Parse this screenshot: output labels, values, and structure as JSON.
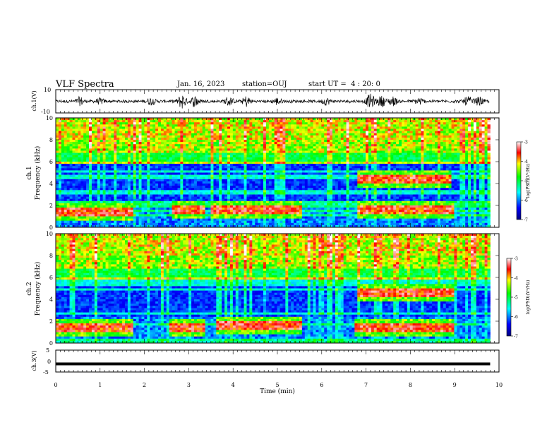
{
  "header": {
    "title": "VLF Spectra",
    "date": "Jan. 16, 2023",
    "station": "station=OUJ",
    "start_ut": "start UT =  4 : 20: 0"
  },
  "chart_data": [
    {
      "panel": "ch1-waveform",
      "type": "line",
      "ylabel": "ch.1(V)",
      "ylim": [
        -10,
        10
      ],
      "yticks": [
        "10",
        "-10"
      ],
      "xlim": [
        0,
        10
      ],
      "baseline_amplitude_v": 1.2,
      "bursts_min": [
        [
          0.55,
          3.0
        ],
        [
          1.0,
          2.0
        ],
        [
          2.15,
          2.5
        ],
        [
          2.85,
          5.5
        ],
        [
          3.15,
          4.5
        ],
        [
          3.9,
          3.5
        ],
        [
          4.3,
          4.0
        ],
        [
          5.0,
          2.5
        ],
        [
          6.1,
          2.5
        ],
        [
          7.1,
          5.5
        ],
        [
          7.35,
          4.0
        ],
        [
          7.6,
          3.5
        ],
        [
          8.2,
          2.5
        ],
        [
          9.3,
          3.5
        ],
        [
          9.55,
          3.0
        ]
      ]
    },
    {
      "panel": "ch1-spectrogram",
      "type": "heatmap",
      "ylabel_top": "ch.1",
      "ylabel": "Frequency (kHz)",
      "ylim": [
        0,
        10
      ],
      "yticks": [
        "0",
        "2",
        "4",
        "6",
        "8",
        "10"
      ],
      "xlim": [
        0,
        9.8
      ],
      "colorbar": {
        "label": "log(PSD)(V²/Hz)",
        "range": [
          -7,
          -3
        ],
        "ticks": [
          "-3",
          "-4",
          "-5",
          "-6",
          "-7"
        ]
      },
      "emission_bands": [
        {
          "t0": 0.0,
          "t1": 1.75,
          "f_center": 1.45
        },
        {
          "t0": 2.6,
          "t1": 3.35,
          "f_center": 1.5
        },
        {
          "t0": 3.5,
          "t1": 5.55,
          "f_center": 1.6
        },
        {
          "t0": 6.8,
          "t1": 9.0,
          "f_center": 1.55
        },
        {
          "t0": 6.8,
          "t1": 8.95,
          "f_center": 4.5
        }
      ]
    },
    {
      "panel": "ch2-spectrogram",
      "type": "heatmap",
      "ylabel_top": "ch.2",
      "ylabel": "Frequency (kHz)",
      "ylim": [
        0,
        10
      ],
      "yticks": [
        "0",
        "2",
        "4",
        "6",
        "8",
        "10"
      ],
      "xlim": [
        0,
        9.8
      ],
      "colorbar": {
        "label": "log(PSD)(V²/Hz)",
        "range": [
          -7,
          -3
        ],
        "ticks": [
          "-3",
          "-4",
          "-5",
          "-6",
          "-7"
        ]
      },
      "emission_bands": [
        {
          "t0": 0.0,
          "t1": 1.75,
          "f_center": 1.4
        },
        {
          "t0": 2.55,
          "t1": 3.35,
          "f_center": 1.45
        },
        {
          "t0": 3.6,
          "t1": 5.55,
          "f_center": 1.55
        },
        {
          "t0": 6.75,
          "t1": 9.0,
          "f_center": 1.45
        },
        {
          "t0": 6.8,
          "t1": 9.0,
          "f_center": 4.6
        }
      ]
    },
    {
      "panel": "ch3-waveform",
      "type": "line",
      "ylabel": "ch.3(V)",
      "ylim": [
        -5,
        5
      ],
      "yticks": [
        "5",
        "0",
        "-5"
      ],
      "xlim": [
        0,
        10
      ],
      "constant_value_v": -1.3
    }
  ],
  "xaxis": {
    "label": "Time (min)",
    "ticks": [
      "0",
      "1",
      "2",
      "3",
      "4",
      "5",
      "6",
      "7",
      "8",
      "9",
      "10"
    ]
  }
}
